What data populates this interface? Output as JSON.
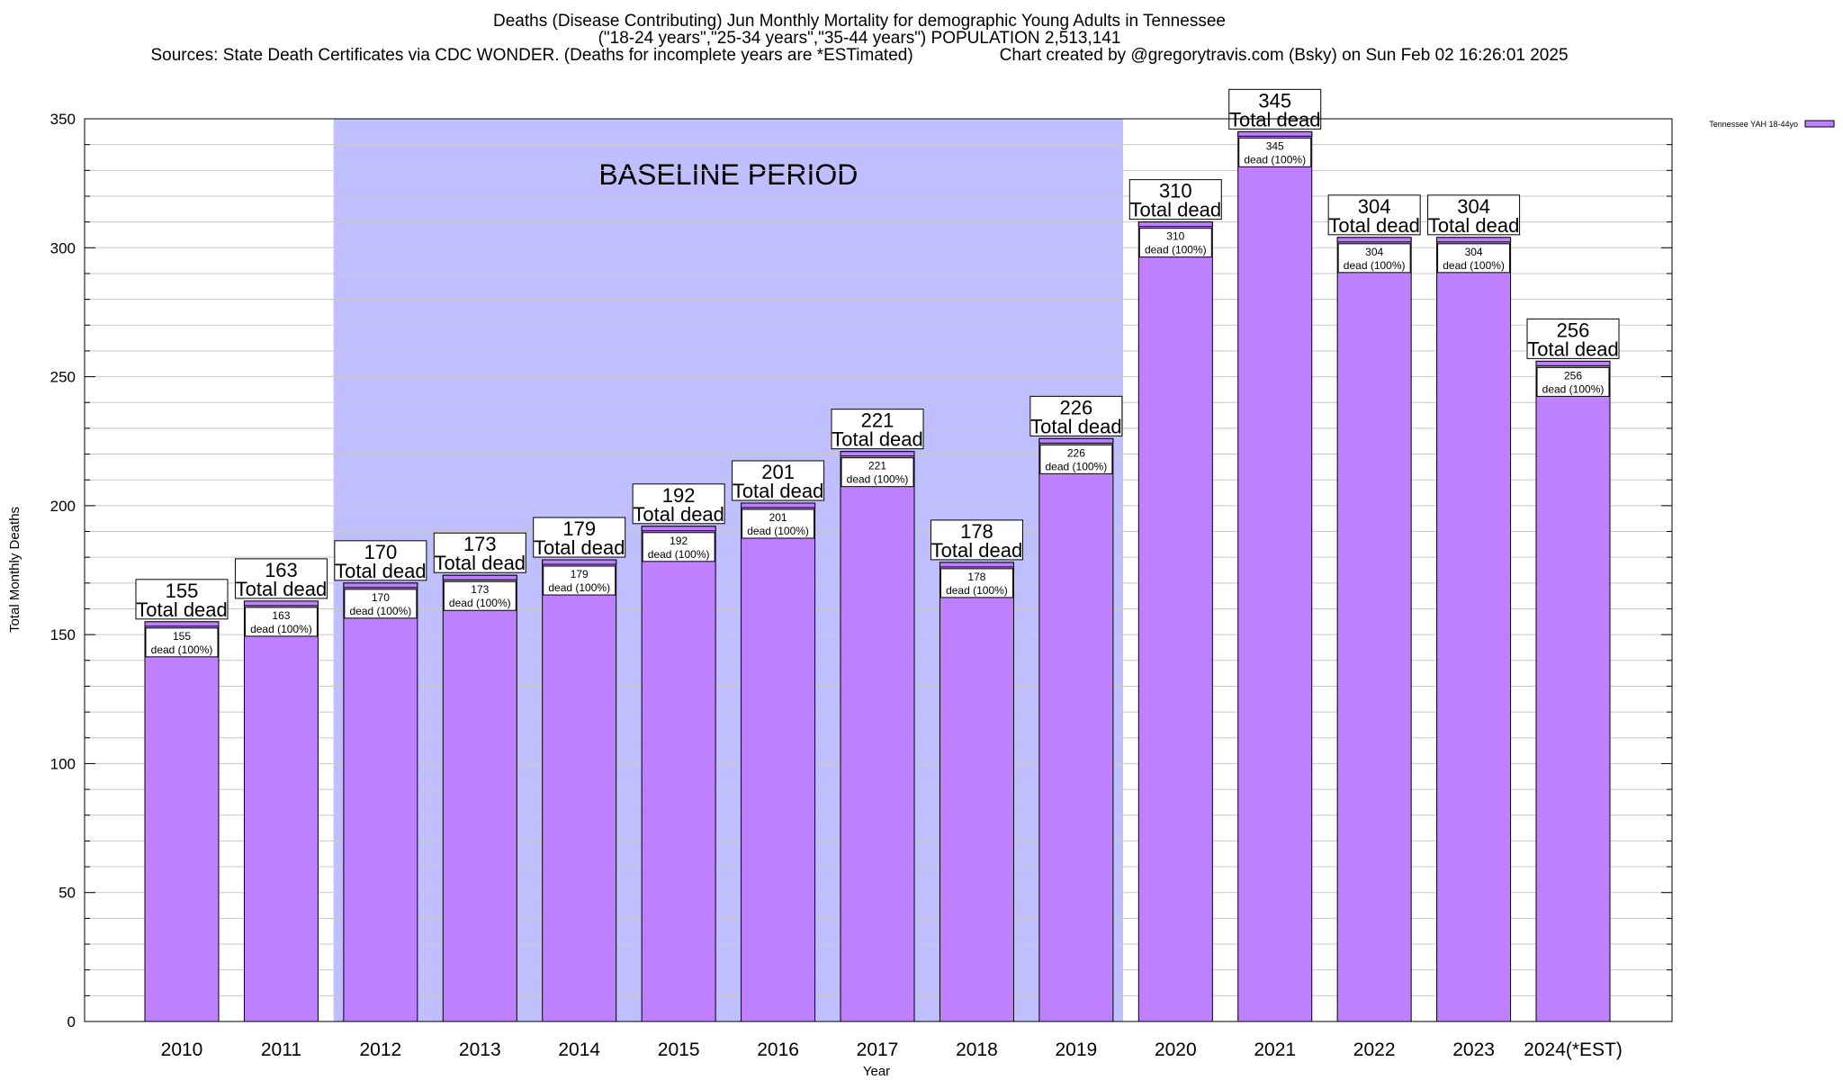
{
  "header": {
    "title_line1": "Deaths (Disease Contributing) Jun Monthly Mortality for demographic Young Adults in Tennessee",
    "title_line2": "(\"18-24 years\",\"25-34 years\",\"35-44 years\") POPULATION 2,513,141",
    "title_line3_sources": "Sources: State Death Certificates via CDC WONDER. (Deaths for incomplete years are *ESTimated)",
    "title_line3_credit": "Chart created by @gregorytravis.com (Bsky) on Sun Feb 02 16:26:01 2025"
  },
  "chart_data": {
    "type": "bar",
    "categories": [
      "2010",
      "2011",
      "2012",
      "2013",
      "2014",
      "2015",
      "2016",
      "2017",
      "2018",
      "2019",
      "2020",
      "2021",
      "2022",
      "2023",
      "2024(*EST)"
    ],
    "series": [
      {
        "name": "Tennessee YAH 18-44yo",
        "values": [
          155,
          163,
          170,
          173,
          179,
          192,
          201,
          221,
          178,
          226,
          310,
          345,
          304,
          304,
          256
        ]
      }
    ],
    "total_label_text": "Total dead",
    "segment_label_text": "dead (100%)",
    "xlabel": "Year",
    "ylabel": "Total Monthly Deaths",
    "ylim": [
      0,
      350
    ],
    "yticks": [
      0,
      50,
      100,
      150,
      200,
      250,
      300,
      350
    ],
    "grid": true,
    "baseline_period": {
      "label": "BASELINE PERIOD",
      "start_category": "2012",
      "end_category": "2019"
    },
    "legend": {
      "position": "top-right",
      "entries": [
        "Tennessee YAH 18-44yo"
      ]
    },
    "colors": {
      "bar": "#bf80ff",
      "baseline": "#bfbfff",
      "grid": "#c8c8c8"
    }
  }
}
